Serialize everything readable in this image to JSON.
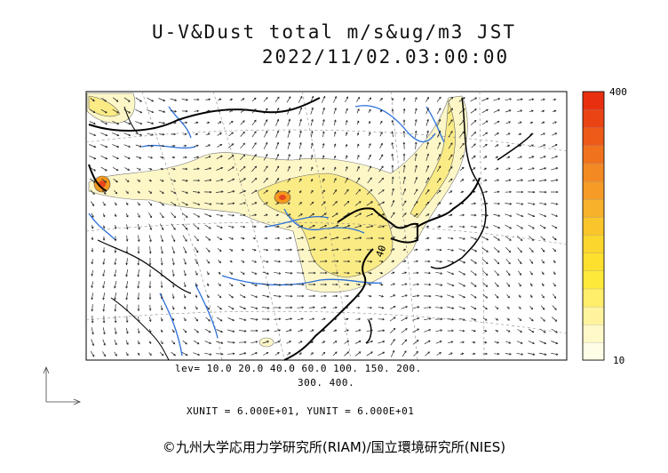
{
  "title": "U-V&Dust total m/s&ug/m3 JST",
  "datetime": "2022/11/02.03:00:00",
  "legend": {
    "levels_label": "lev= 10.0 20.0 40.0 60.0 100. 150. 200.",
    "levels_label_2": "300. 400.",
    "levels": [
      10,
      20,
      40,
      60,
      100,
      150,
      200,
      300,
      400
    ],
    "colorbar_max": "400",
    "colorbar_min": "10"
  },
  "units_line": "XUNIT = 6.000E+01, YUNIT = 6.000E+01",
  "contour_label": "40",
  "copyright": "©九州大学応用力学研究所(RIAM)/国立環境研究所(NIES)",
  "colors": {
    "dust_low": "#fdf7c8",
    "dust_mid": "#fbeb85",
    "dust_high": "#f39a1e",
    "dust_max": "#e8461e",
    "rivers": "#2a6fdb",
    "coast": "#000000"
  },
  "colorbar_colors": [
    "#fffde5",
    "#fff9c9",
    "#fff49d",
    "#ffee6a",
    "#fde93a",
    "#fde02e",
    "#fbd62c",
    "#f9c52b",
    "#f7b12a",
    "#f59b26",
    "#f38922",
    "#f1721d",
    "#ee5a18",
    "#eb4414",
    "#e83011"
  ]
}
